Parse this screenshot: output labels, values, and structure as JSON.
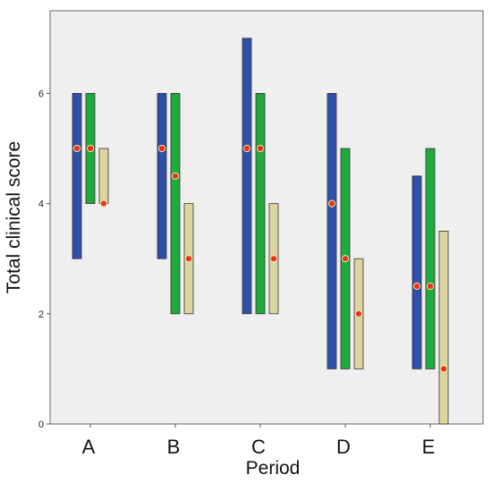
{
  "chart_data": {
    "type": "bar",
    "subtype": "floating-range-with-median",
    "title": "",
    "xlabel": "Period",
    "ylabel": "Total clinical score",
    "ylim": [
      0,
      7.5
    ],
    "yticks": [
      "0",
      "2",
      "4",
      "6"
    ],
    "categories": [
      "A",
      "B",
      "C",
      "D",
      "E"
    ],
    "grid": false,
    "legend": "none",
    "series": [
      {
        "color": "#2f4fa8",
        "low": [
          3,
          3,
          2,
          1,
          1
        ],
        "high": [
          6,
          6,
          7,
          6,
          4.5
        ],
        "median": [
          5,
          5,
          5,
          4,
          2.5
        ]
      },
      {
        "color": "#1faa3c",
        "low": [
          4,
          2,
          2,
          1,
          1
        ],
        "high": [
          6,
          6,
          6,
          5,
          5
        ],
        "median": [
          5,
          4.5,
          5,
          3,
          2.5
        ]
      },
      {
        "color": "#dcd5a0",
        "low": [
          4,
          2,
          2,
          1,
          0
        ],
        "high": [
          5,
          4,
          4,
          3,
          3.5
        ],
        "median": [
          4,
          3,
          3,
          2,
          1
        ]
      }
    ],
    "median_marker_color": "#e8321e",
    "plot_background": "#efefef"
  }
}
